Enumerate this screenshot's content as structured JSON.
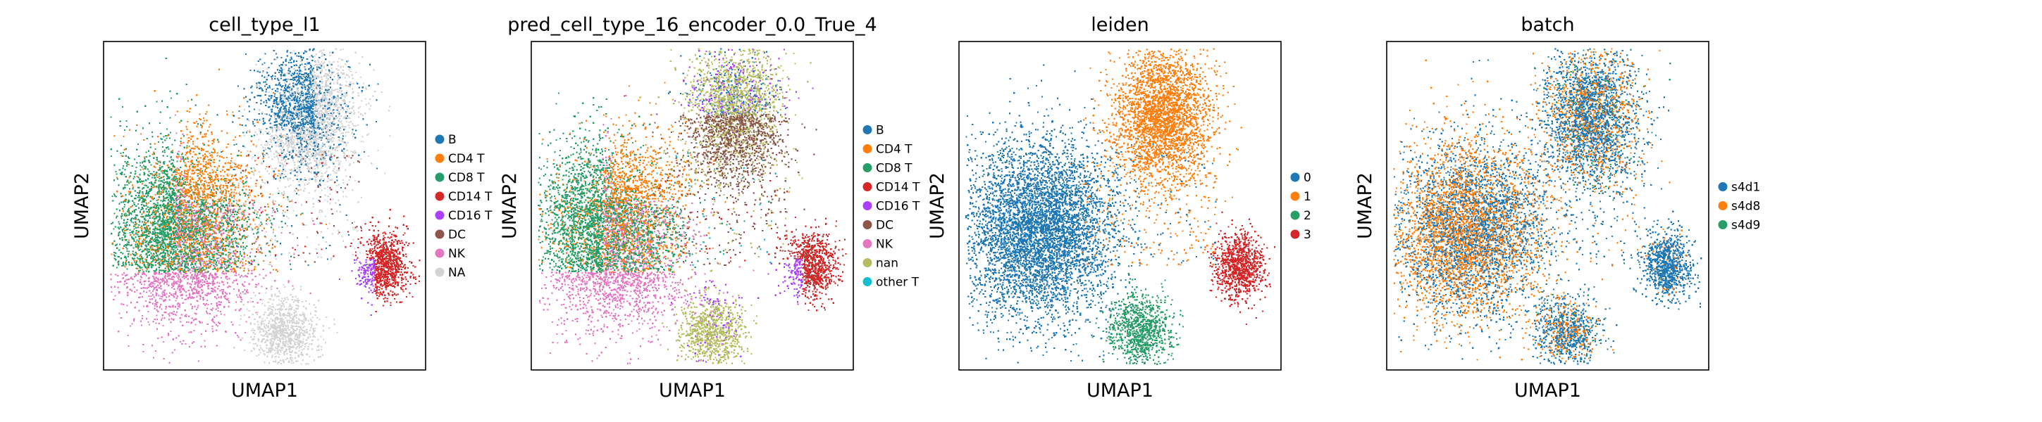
{
  "chart_data": [
    {
      "type": "scatter",
      "title": "cell_type_l1",
      "xlabel": "UMAP1",
      "ylabel": "UMAP2",
      "grid": false,
      "legend_placement": "right",
      "legend": [
        {
          "label": "B",
          "color": "#1f77b4"
        },
        {
          "label": "CD4 T",
          "color": "#ff7f0e"
        },
        {
          "label": "CD8 T",
          "color": "#279e68"
        },
        {
          "label": "CD14 T",
          "color": "#d62728"
        },
        {
          "label": "CD16 T",
          "color": "#aa40fc"
        },
        {
          "label": "DC",
          "color": "#8c564b"
        },
        {
          "label": "NK",
          "color": "#e377c2"
        },
        {
          "label": "NA",
          "color": "#d3d3d3"
        }
      ]
    },
    {
      "type": "scatter",
      "title": "pred_cell_type_16_encoder_0.0_True_4",
      "xlabel": "UMAP1",
      "ylabel": "UMAP2",
      "grid": false,
      "legend_placement": "right",
      "legend": [
        {
          "label": "B",
          "color": "#1f77b4"
        },
        {
          "label": "CD4 T",
          "color": "#ff7f0e"
        },
        {
          "label": "CD8 T",
          "color": "#279e68"
        },
        {
          "label": "CD14 T",
          "color": "#d62728"
        },
        {
          "label": "CD16 T",
          "color": "#aa40fc"
        },
        {
          "label": "DC",
          "color": "#8c564b"
        },
        {
          "label": "NK",
          "color": "#e377c2"
        },
        {
          "label": "nan",
          "color": "#b5bd61"
        },
        {
          "label": "other T",
          "color": "#17becf"
        }
      ]
    },
    {
      "type": "scatter",
      "title": "leiden",
      "xlabel": "UMAP1",
      "ylabel": "UMAP2",
      "grid": false,
      "legend_placement": "right",
      "legend": [
        {
          "label": "0",
          "color": "#1f77b4"
        },
        {
          "label": "1",
          "color": "#ff7f0e"
        },
        {
          "label": "2",
          "color": "#279e68"
        },
        {
          "label": "3",
          "color": "#d62728"
        }
      ]
    },
    {
      "type": "scatter",
      "title": "batch",
      "xlabel": "UMAP1",
      "ylabel": "UMAP2",
      "grid": false,
      "legend_placement": "right",
      "legend": [
        {
          "label": "s4d1",
          "color": "#1f77b4"
        },
        {
          "label": "s4d8",
          "color": "#ff7f0e"
        },
        {
          "label": "s4d9",
          "color": "#279e68"
        }
      ]
    }
  ]
}
